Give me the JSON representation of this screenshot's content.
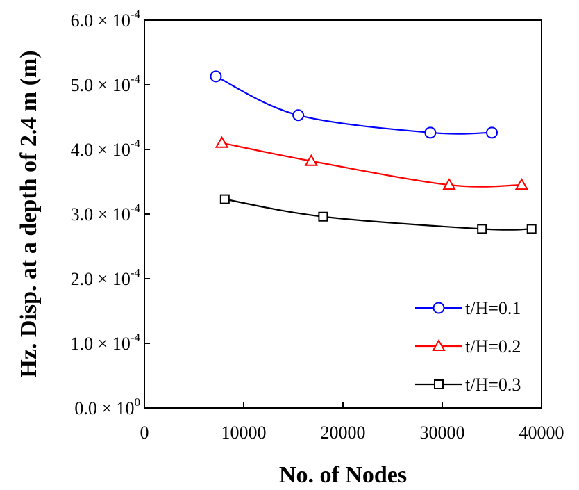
{
  "chart_data": {
    "type": "line",
    "title": "",
    "xlabel": "No. of Nodes",
    "ylabel": "Hz. Disp. at a depth of 2.4 m (m)",
    "xlim": [
      0,
      40000
    ],
    "ylim": [
      0,
      0.0006
    ],
    "x_ticks": [
      0,
      10000,
      20000,
      30000,
      40000
    ],
    "x_tick_labels": [
      "0",
      "10000",
      "20000",
      "30000",
      "40000"
    ],
    "y_ticks": [
      0,
      0.0001,
      0.0002,
      0.0003,
      0.0004,
      0.0005,
      0.0006
    ],
    "y_tick_labels": [
      {
        "base": "0.0 × 10",
        "exp": "0"
      },
      {
        "base": "1.0 × 10",
        "exp": "-4"
      },
      {
        "base": "2.0 × 10",
        "exp": "-4"
      },
      {
        "base": "3.0 × 10",
        "exp": "-4"
      },
      {
        "base": "4.0 × 10",
        "exp": "-4"
      },
      {
        "base": "5.0 × 10",
        "exp": "-4"
      },
      {
        "base": "6.0 × 10",
        "exp": "-4"
      }
    ],
    "grid": false,
    "legend_position": "bottom-right",
    "series": [
      {
        "name": "t/H=0.1",
        "color": "#0000ff",
        "marker": "circle",
        "x": [
          7200,
          15500,
          28800,
          35000
        ],
        "y": [
          0.000513,
          0.000453,
          0.000426,
          0.000426
        ]
      },
      {
        "name": "t/H=0.2",
        "color": "#ff0000",
        "marker": "triangle",
        "x": [
          7800,
          16800,
          30700,
          38000
        ],
        "y": [
          0.00041,
          0.000382,
          0.000345,
          0.000345
        ]
      },
      {
        "name": "t/H=0.3",
        "color": "#000000",
        "marker": "square",
        "x": [
          8100,
          18000,
          34000,
          39000
        ],
        "y": [
          0.000323,
          0.000296,
          0.000277,
          0.000277
        ]
      }
    ]
  }
}
